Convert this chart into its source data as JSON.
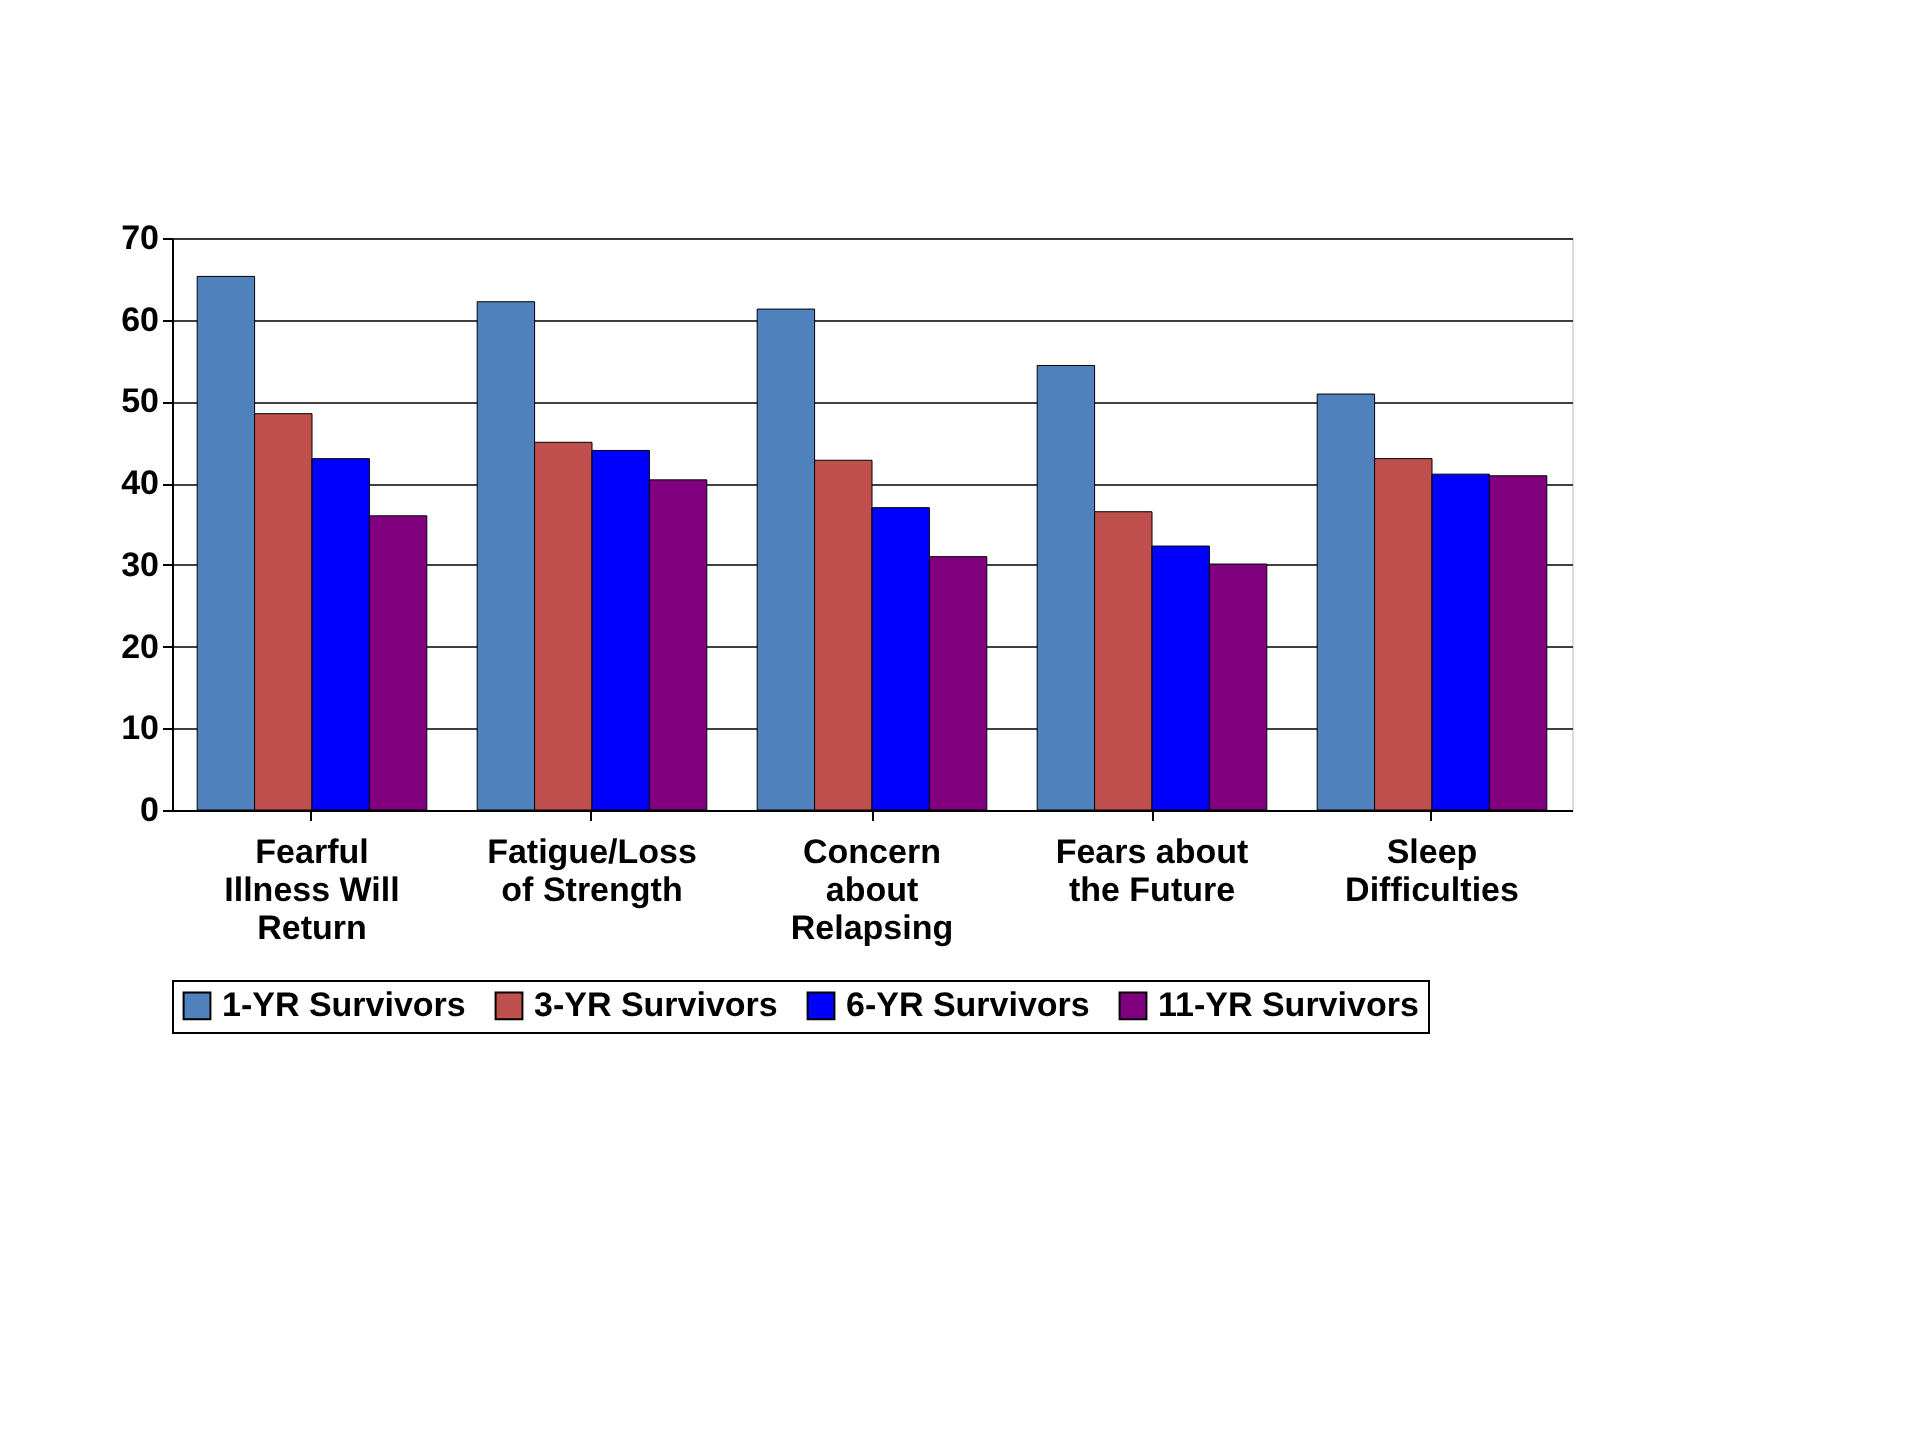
{
  "chart_data": {
    "type": "bar",
    "categories": [
      "Fearful Illness Will Return",
      "Fatigue/Loss of Strength",
      "Concern about Relapsing",
      "Fears about the Future",
      "Sleep Difficulties"
    ],
    "series": [
      {
        "name": "1-YR Survivors",
        "color": "#4f81bd",
        "values": [
          65.3,
          62.2,
          61.3,
          54.4,
          50.9
        ]
      },
      {
        "name": "3-YR Survivors",
        "color": "#c0504d",
        "values": [
          48.5,
          45,
          42.8,
          36.5,
          43
        ]
      },
      {
        "name": "6-YR Survivors",
        "color": "#0000ff",
        "values": [
          43,
          44,
          37,
          32.3,
          41.1
        ]
      },
      {
        "name": "11-YR Survivors",
        "color": "#800080",
        "values": [
          36,
          40.4,
          31,
          30.1,
          40.9
        ]
      }
    ],
    "ylim": [
      0,
      70
    ],
    "yticks": [
      0,
      10,
      20,
      30,
      40,
      50,
      60,
      70
    ],
    "grid": "y",
    "legend": "bottom"
  }
}
